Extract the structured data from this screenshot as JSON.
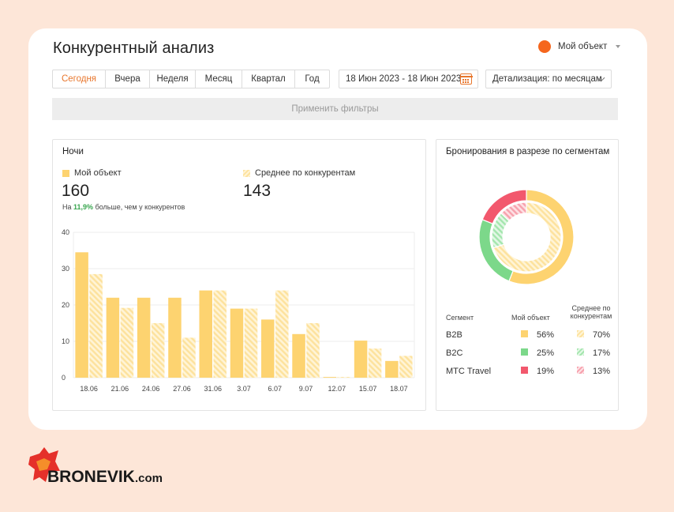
{
  "page": {
    "title": "Конкурентный анализ"
  },
  "object_selector": {
    "label": "Мой объект",
    "dot_color": "#f5661d",
    "icon": "chevron-down-icon"
  },
  "filters": {
    "periods": [
      "Сегодня",
      "Вчера",
      "Неделя",
      "Месяц",
      "Квартал",
      "Год"
    ],
    "active_period": "Сегодня",
    "date_range": "18 Июн 2023 - 18 Июн 2023",
    "detail": "Детализация: по месяцам",
    "apply_label": "Применить фильтры"
  },
  "nights": {
    "title": "Ночи",
    "mine_label": "Мой объект",
    "mine_value": "160",
    "avg_label": "Среднее по конкурентам",
    "avg_value": "143",
    "note_prefix": "На",
    "note_pct": "11,9%",
    "note_suffix": "больше, чем у конкурентов"
  },
  "segments": {
    "title": "Бронирования в разрезе по сегментам",
    "col_segment": "Сегмент",
    "col_mine": "Мой объект",
    "col_avg_line1": "Среднее по",
    "col_avg_line2": "конкурентам",
    "rows": [
      {
        "name": "B2B",
        "mine": "56%",
        "avg": "70%"
      },
      {
        "name": "B2C",
        "mine": "25%",
        "avg": "17%"
      },
      {
        "name": "МТС Travel",
        "mine": "19%",
        "avg": "13%"
      }
    ]
  },
  "colors": {
    "accent": "#e8762c",
    "bar_mine": "#fdd370",
    "bar_avg": "#fde29d",
    "green": "#7cd88a",
    "red": "#f2586d",
    "positive": "#3aa650"
  },
  "logo": {
    "text": "BRONEVIK",
    "suffix": ".com"
  },
  "chart_data": [
    {
      "type": "bar",
      "title": "Ночи",
      "categories": [
        "18.06",
        "21.06",
        "24.06",
        "27.06",
        "31.06",
        "3.07",
        "6.07",
        "9.07",
        "12.07",
        "15.07",
        "18.07"
      ],
      "series": [
        {
          "name": "Мой объект",
          "values": [
            34.5,
            22,
            22,
            22,
            24,
            19,
            16,
            12,
            0.2,
            10.2,
            4.6
          ]
        },
        {
          "name": "Среднее по конкурентам",
          "values": [
            28.5,
            19.2,
            15,
            11,
            24,
            19,
            24,
            15,
            0.2,
            8,
            6
          ]
        }
      ],
      "ylim": [
        0,
        40
      ],
      "yticks": [
        0,
        10,
        20,
        30,
        40
      ],
      "grid": true
    },
    {
      "type": "pie",
      "title": "Бронирования в разрезе по сегментам",
      "labels": [
        "B2B",
        "B2C",
        "МТС Travel"
      ],
      "series": [
        {
          "name": "Мой объект",
          "values": [
            56,
            25,
            19
          ]
        },
        {
          "name": "Среднее по конкурентам",
          "values": [
            70,
            17,
            13
          ]
        }
      ]
    }
  ]
}
